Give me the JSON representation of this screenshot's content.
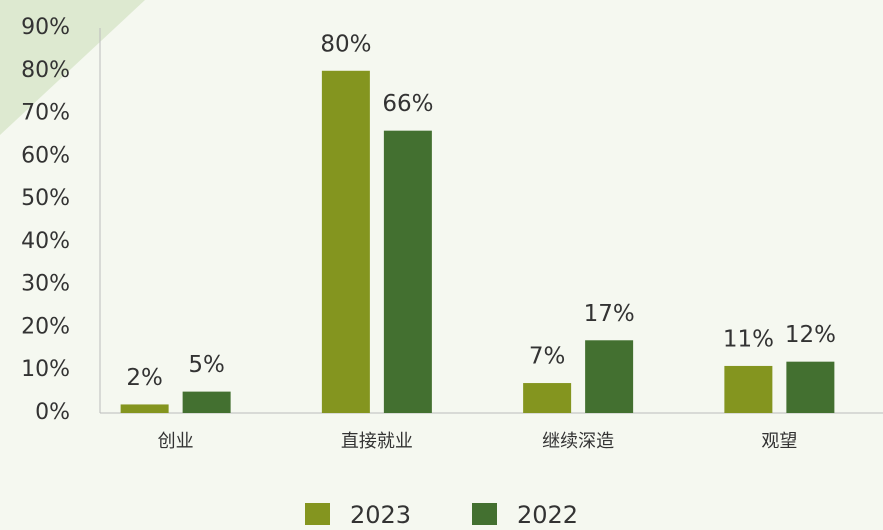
{
  "chart_data": {
    "type": "bar",
    "categories": [
      "创业",
      "直接就业",
      "继续深造",
      "观望"
    ],
    "series": [
      {
        "name": "2023",
        "color": "#84951f",
        "values": [
          2,
          80,
          7,
          11
        ],
        "value_labels": [
          "2%",
          "80%",
          "7%",
          "11%"
        ]
      },
      {
        "name": "2022",
        "color": "#437030",
        "values": [
          5,
          66,
          17,
          12
        ],
        "value_labels": [
          "5%",
          "66%",
          "17%",
          "12%"
        ]
      }
    ],
    "ylim": [
      0,
      90
    ],
    "yticks": [
      {
        "value": 0,
        "label": "0%"
      },
      {
        "value": 10,
        "label": "10%"
      },
      {
        "value": 20,
        "label": "20%"
      },
      {
        "value": 30,
        "label": "30%"
      },
      {
        "value": 40,
        "label": "40%"
      },
      {
        "value": 50,
        "label": "50%"
      },
      {
        "value": 60,
        "label": "60%"
      },
      {
        "value": 70,
        "label": "70%"
      },
      {
        "value": 80,
        "label": "80%"
      },
      {
        "value": 90,
        "label": "90%"
      }
    ],
    "grid": false,
    "legend": "bottom"
  }
}
